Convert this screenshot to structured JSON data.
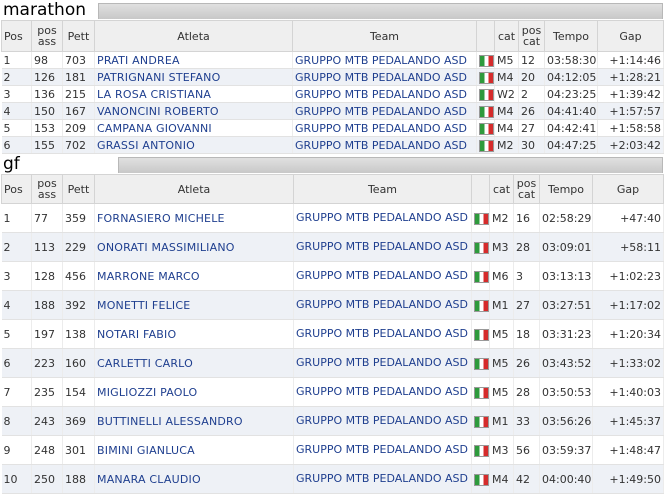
{
  "columns": {
    "pos": "Pos",
    "pos_ass": "pos ass",
    "pett": "Pett",
    "atleta": "Atleta",
    "team": "Team",
    "cat": "cat",
    "pos_cat": "pos cat",
    "tempo": "Tempo",
    "gap": "Gap"
  },
  "marathon": {
    "title": "marathon",
    "rows": [
      {
        "pos": "1",
        "pos_ass": "98",
        "pett": "703",
        "atleta": "PRATI ANDREA",
        "team": "GRUPPO MTB PEDALANDO ASD",
        "cat": "M5",
        "pos_cat": "12",
        "tempo": "03:58:30",
        "gap": "+1:14:46"
      },
      {
        "pos": "2",
        "pos_ass": "126",
        "pett": "181",
        "atleta": "PATRIGNANI STEFANO",
        "team": "GRUPPO MTB PEDALANDO ASD",
        "cat": "M4",
        "pos_cat": "20",
        "tempo": "04:12:05",
        "gap": "+1:28:21"
      },
      {
        "pos": "3",
        "pos_ass": "136",
        "pett": "215",
        "atleta": "LA ROSA CRISTIANA",
        "team": "GRUPPO MTB PEDALANDO ASD",
        "cat": "W2",
        "pos_cat": "2",
        "tempo": "04:23:25",
        "gap": "+1:39:42"
      },
      {
        "pos": "4",
        "pos_ass": "150",
        "pett": "167",
        "atleta": "VANONCINI ROBERTO",
        "team": "GRUPPO MTB PEDALANDO ASD",
        "cat": "M4",
        "pos_cat": "26",
        "tempo": "04:41:40",
        "gap": "+1:57:57"
      },
      {
        "pos": "5",
        "pos_ass": "153",
        "pett": "209",
        "atleta": "CAMPANA GIOVANNI",
        "team": "GRUPPO MTB PEDALANDO ASD",
        "cat": "M4",
        "pos_cat": "27",
        "tempo": "04:42:41",
        "gap": "+1:58:58"
      },
      {
        "pos": "6",
        "pos_ass": "155",
        "pett": "702",
        "atleta": "GRASSI ANTONIO",
        "team": "GRUPPO MTB PEDALANDO ASD",
        "cat": "M2",
        "pos_cat": "30",
        "tempo": "04:47:25",
        "gap": "+2:03:42"
      }
    ]
  },
  "gf": {
    "title": "gf",
    "rows": [
      {
        "pos": "1",
        "pos_ass": "77",
        "pett": "359",
        "atleta": "FORNASIERO MICHELE",
        "team": "GRUPPO MTB PEDALANDO ASD",
        "cat": "M2",
        "pos_cat": "16",
        "tempo": "02:58:29",
        "gap": "+47:40"
      },
      {
        "pos": "2",
        "pos_ass": "113",
        "pett": "229",
        "atleta": "ONORATI MASSIMILIANO",
        "team": "GRUPPO MTB PEDALANDO ASD",
        "cat": "M3",
        "pos_cat": "28",
        "tempo": "03:09:01",
        "gap": "+58:11"
      },
      {
        "pos": "3",
        "pos_ass": "128",
        "pett": "456",
        "atleta": "MARRONE MARCO",
        "team": "GRUPPO MTB PEDALANDO ASD",
        "cat": "M6",
        "pos_cat": "3",
        "tempo": "03:13:13",
        "gap": "+1:02:23"
      },
      {
        "pos": "4",
        "pos_ass": "188",
        "pett": "392",
        "atleta": "MONETTI FELICE",
        "team": "GRUPPO MTB PEDALANDO ASD",
        "cat": "M1",
        "pos_cat": "27",
        "tempo": "03:27:51",
        "gap": "+1:17:02"
      },
      {
        "pos": "5",
        "pos_ass": "197",
        "pett": "138",
        "atleta": "NOTARI FABIO",
        "team": "GRUPPO MTB PEDALANDO ASD",
        "cat": "M5",
        "pos_cat": "18",
        "tempo": "03:31:23",
        "gap": "+1:20:34"
      },
      {
        "pos": "6",
        "pos_ass": "223",
        "pett": "160",
        "atleta": "CARLETTI CARLO",
        "team": "GRUPPO MTB PEDALANDO ASD",
        "cat": "M5",
        "pos_cat": "26",
        "tempo": "03:43:52",
        "gap": "+1:33:02"
      },
      {
        "pos": "7",
        "pos_ass": "235",
        "pett": "154",
        "atleta": "MIGLIOZZI PAOLO",
        "team": "GRUPPO MTB PEDALANDO ASD",
        "cat": "M5",
        "pos_cat": "28",
        "tempo": "03:50:53",
        "gap": "+1:40:03"
      },
      {
        "pos": "8",
        "pos_ass": "243",
        "pett": "369",
        "atleta": "BUTTINELLI ALESSANDRO",
        "team": "GRUPPO MTB PEDALANDO ASD",
        "cat": "M1",
        "pos_cat": "33",
        "tempo": "03:56:26",
        "gap": "+1:45:37"
      },
      {
        "pos": "9",
        "pos_ass": "248",
        "pett": "301",
        "atleta": "BIMINI GIANLUCA",
        "team": "GRUPPO MTB PEDALANDO ASD",
        "cat": "M3",
        "pos_cat": "56",
        "tempo": "03:59:37",
        "gap": "+1:48:47"
      },
      {
        "pos": "10",
        "pos_ass": "250",
        "pett": "188",
        "atleta": "MANARA CLAUDIO",
        "team": "GRUPPO MTB PEDALANDO ASD",
        "cat": "M4",
        "pos_cat": "42",
        "tempo": "04:00:40",
        "gap": "+1:49:50"
      }
    ]
  },
  "flag_icon": "italy-flag-icon",
  "colors": {
    "link": "#1f3f8f",
    "row_alt": "#eef1f6",
    "header_bg": "#efefef"
  }
}
